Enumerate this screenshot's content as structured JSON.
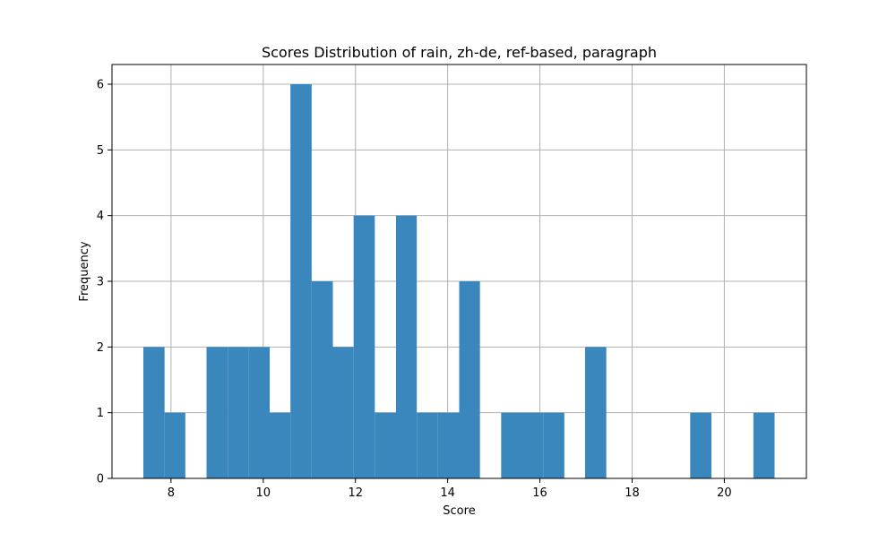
{
  "chart_data": {
    "type": "bar",
    "title": "Scores Distribution of rain, zh-de, ref-based, paragraph",
    "xlabel": "Score",
    "ylabel": "Frequency",
    "xlim": [
      6.72,
      21.78
    ],
    "ylim": [
      0,
      6.3
    ],
    "xticks": [
      8,
      10,
      12,
      14,
      16,
      18,
      20
    ],
    "yticks": [
      0,
      1,
      2,
      3,
      4,
      5,
      6
    ],
    "grid": true,
    "bar_color": "#3a87be",
    "grid_color": "#b0b0b0",
    "bins": [
      {
        "x0": 7.4,
        "x1": 7.86,
        "count": 2
      },
      {
        "x0": 7.86,
        "x1": 8.31,
        "count": 1
      },
      {
        "x0": 8.31,
        "x1": 8.77,
        "count": 0
      },
      {
        "x0": 8.77,
        "x1": 9.23,
        "count": 2
      },
      {
        "x0": 9.23,
        "x1": 9.68,
        "count": 2
      },
      {
        "x0": 9.68,
        "x1": 10.14,
        "count": 2
      },
      {
        "x0": 10.14,
        "x1": 10.59,
        "count": 1
      },
      {
        "x0": 10.59,
        "x1": 11.05,
        "count": 6
      },
      {
        "x0": 11.05,
        "x1": 11.51,
        "count": 3
      },
      {
        "x0": 11.51,
        "x1": 11.96,
        "count": 2
      },
      {
        "x0": 11.96,
        "x1": 12.42,
        "count": 4
      },
      {
        "x0": 12.42,
        "x1": 12.88,
        "count": 1
      },
      {
        "x0": 12.88,
        "x1": 13.33,
        "count": 4
      },
      {
        "x0": 13.33,
        "x1": 13.79,
        "count": 1
      },
      {
        "x0": 13.79,
        "x1": 14.25,
        "count": 1
      },
      {
        "x0": 14.25,
        "x1": 14.7,
        "count": 3
      },
      {
        "x0": 14.7,
        "x1": 15.16,
        "count": 0
      },
      {
        "x0": 15.16,
        "x1": 15.61,
        "count": 1
      },
      {
        "x0": 15.61,
        "x1": 16.07,
        "count": 1
      },
      {
        "x0": 16.07,
        "x1": 16.53,
        "count": 1
      },
      {
        "x0": 16.53,
        "x1": 16.98,
        "count": 0
      },
      {
        "x0": 16.98,
        "x1": 17.44,
        "count": 2
      },
      {
        "x0": 17.44,
        "x1": 17.9,
        "count": 0
      },
      {
        "x0": 17.9,
        "x1": 18.35,
        "count": 0
      },
      {
        "x0": 18.35,
        "x1": 18.81,
        "count": 0
      },
      {
        "x0": 18.81,
        "x1": 19.26,
        "count": 0
      },
      {
        "x0": 19.26,
        "x1": 19.72,
        "count": 1
      },
      {
        "x0": 19.72,
        "x1": 20.18,
        "count": 0
      },
      {
        "x0": 20.18,
        "x1": 20.63,
        "count": 0
      },
      {
        "x0": 20.63,
        "x1": 21.09,
        "count": 1
      }
    ]
  }
}
